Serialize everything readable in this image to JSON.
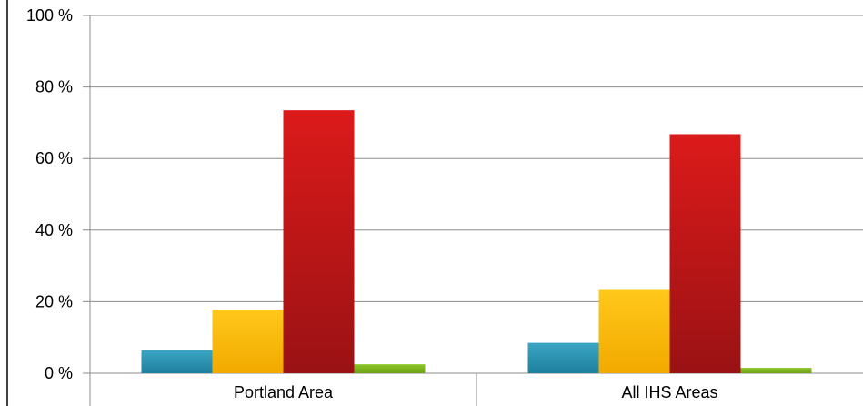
{
  "chart_data": {
    "type": "bar",
    "categories": [
      "Portland Area",
      "All IHS Areas"
    ],
    "series": [
      {
        "values": [
          6.5,
          8.5
        ],
        "color": "#2f95b3"
      },
      {
        "values": [
          17.8,
          23.3
        ],
        "color": "#ffbf00"
      },
      {
        "values": [
          73.5,
          66.8
        ],
        "color": "#c8161b"
      },
      {
        "values": [
          2.5,
          1.5
        ],
        "color": "#7fb81f"
      }
    ],
    "y_ticks": [
      "0 %",
      "20 %",
      "40 %",
      "60 %",
      "80 %",
      "100 %"
    ],
    "ylim": [
      0,
      100
    ],
    "grid": true
  }
}
